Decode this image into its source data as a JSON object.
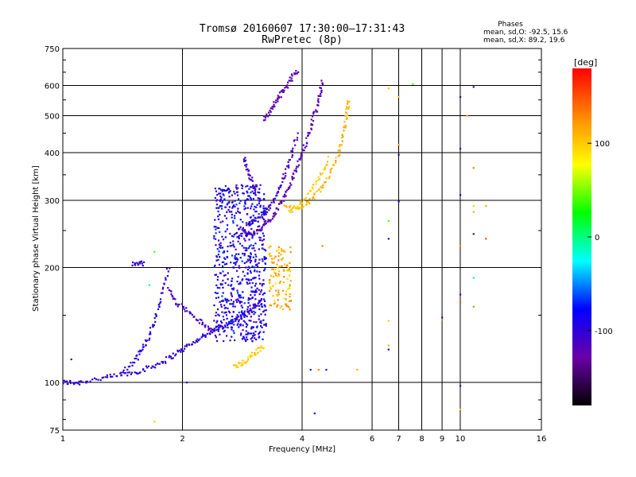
{
  "chart_data": {
    "type": "scatter",
    "title": "Tromsø 20160607 17:30:00–17:31:43",
    "subtitle": "RwPretec (8p)",
    "xlabel": "Frequency [MHz]",
    "ylabel": "Stationary phase Virtual Height [km]",
    "x_scale": "log",
    "y_scale": "log",
    "xlim": [
      1,
      16
    ],
    "ylim": [
      75,
      750
    ],
    "x_ticks": [
      1,
      2,
      4,
      6,
      8,
      10,
      16
    ],
    "x_tick_labels": [
      "1",
      "2",
      "4",
      "6",
      "8",
      "10",
      "16"
    ],
    "x_minor_ticks": [
      7,
      9
    ],
    "y_ticks": [
      75,
      100,
      200,
      300,
      400,
      500,
      600,
      750
    ],
    "y_tick_labels": [
      "75",
      "100",
      "200",
      "300",
      "400",
      "500",
      "600",
      "750"
    ],
    "grid": true,
    "phase_stats": {
      "heading": "Phases",
      "line_o": "mean, sd,O: -92.5, 15.6",
      "line_x": "mean, sd,X:  89.2, 19.6"
    },
    "colorbar": {
      "label": "[deg]",
      "range": [
        -180,
        180
      ],
      "ticks": [
        100,
        0,
        -100
      ],
      "tick_labels": [
        "100",
        "0",
        "-100"
      ],
      "colors": [
        "#000000",
        "#6a00a8",
        "#0000ff",
        "#00ffff",
        "#00ff00",
        "#ffff00",
        "#ff8800",
        "#ff0000"
      ]
    },
    "series": [
      {
        "traces": [
          {
            "phase": -100,
            "points": [
              [
                1.0,
                100
              ],
              [
                1.05,
                100
              ],
              [
                1.1,
                100
              ],
              [
                1.2,
                102
              ],
              [
                1.3,
                103
              ],
              [
                1.4,
                105
              ],
              [
                1.5,
                106
              ],
              [
                1.6,
                108
              ],
              [
                1.7,
                111
              ],
              [
                1.8,
                114
              ],
              [
                1.9,
                118
              ],
              [
                2.0,
                122
              ],
              [
                2.1,
                126
              ],
              [
                2.2,
                130
              ],
              [
                2.3,
                134
              ],
              [
                2.4,
                137
              ],
              [
                2.5,
                140
              ],
              [
                2.6,
                143
              ],
              [
                2.7,
                145
              ],
              [
                2.8,
                148
              ],
              [
                2.9,
                152
              ],
              [
                3.0,
                156
              ],
              [
                3.1,
                160
              ],
              [
                3.2,
                165
              ]
            ]
          },
          {
            "phase": -100,
            "points": [
              [
                1.4,
                106
              ],
              [
                1.5,
                112
              ],
              [
                1.55,
                118
              ],
              [
                1.6,
                125
              ],
              [
                1.65,
                133
              ],
              [
                1.7,
                145
              ],
              [
                1.75,
                160
              ],
              [
                1.8,
                180
              ],
              [
                1.85,
                205
              ]
            ]
          },
          {
            "phase": -110,
            "points": [
              [
                1.85,
                175
              ],
              [
                1.9,
                165
              ],
              [
                2.0,
                158
              ],
              [
                2.1,
                152
              ],
              [
                2.2,
                145
              ],
              [
                2.3,
                140
              ],
              [
                2.4,
                136
              ]
            ]
          },
          {
            "phase": -120,
            "points": [
              [
                2.8,
                250
              ],
              [
                2.9,
                245
              ],
              [
                3.0,
                245
              ],
              [
                3.1,
                250
              ],
              [
                3.2,
                258
              ],
              [
                3.3,
                265
              ],
              [
                3.4,
                275
              ],
              [
                3.5,
                290
              ],
              [
                3.6,
                305
              ],
              [
                3.7,
                322
              ],
              [
                3.8,
                345
              ],
              [
                3.9,
                372
              ],
              [
                4.0,
                400
              ],
              [
                4.1,
                430
              ],
              [
                4.2,
                465
              ],
              [
                4.3,
                505
              ],
              [
                4.4,
                545
              ],
              [
                4.45,
                580
              ],
              [
                4.5,
                620
              ]
            ]
          },
          {
            "phase": -110,
            "points": [
              [
                2.9,
                260
              ],
              [
                3.0,
                262
              ],
              [
                3.1,
                268
              ],
              [
                3.2,
                275
              ],
              [
                3.3,
                285
              ],
              [
                3.4,
                300
              ],
              [
                3.5,
                320
              ],
              [
                3.6,
                345
              ],
              [
                3.7,
                375
              ],
              [
                3.8,
                410
              ],
              [
                3.9,
                450
              ]
            ]
          },
          {
            "phase": -120,
            "points": [
              [
                3.2,
                490
              ],
              [
                3.3,
                510
              ],
              [
                3.4,
                535
              ],
              [
                3.5,
                560
              ],
              [
                3.6,
                585
              ],
              [
                3.7,
                610
              ],
              [
                3.8,
                640
              ],
              [
                3.9,
                660
              ]
            ]
          },
          {
            "phase": -110,
            "points": [
              [
                2.85,
                390
              ],
              [
                2.9,
                370
              ],
              [
                2.95,
                350
              ],
              [
                3.0,
                330
              ],
              [
                3.05,
                310
              ]
            ]
          },
          {
            "phase": -105,
            "points": [
              [
                1.5,
                205
              ],
              [
                1.55,
                205
              ],
              [
                1.6,
                205
              ]
            ]
          }
        ],
        "cloud": {
          "x_range": [
            2.4,
            3.25
          ],
          "y_range": [
            128,
            330
          ],
          "phase": -90,
          "count": 700
        }
      },
      {
        "traces": [
          {
            "phase": 110,
            "points": [
              [
                3.6,
                290
              ],
              [
                3.8,
                285
              ],
              [
                4.0,
                290
              ],
              [
                4.2,
                300
              ],
              [
                4.4,
                318
              ],
              [
                4.6,
                340
              ],
              [
                4.8,
                370
              ],
              [
                4.95,
                400
              ],
              [
                5.05,
                440
              ],
              [
                5.15,
                480
              ],
              [
                5.2,
                520
              ],
              [
                5.25,
                550
              ]
            ]
          },
          {
            "phase": 100,
            "points": [
              [
                3.7,
                280
              ],
              [
                3.9,
                290
              ],
              [
                4.1,
                305
              ],
              [
                4.3,
                330
              ],
              [
                4.5,
                355
              ],
              [
                4.7,
                390
              ]
            ]
          },
          {
            "phase": 100,
            "points": [
              [
                2.7,
                110
              ],
              [
                2.8,
                112
              ],
              [
                2.9,
                114
              ],
              [
                3.0,
                118
              ],
              [
                3.1,
                121
              ],
              [
                3.2,
                125
              ]
            ]
          }
        ],
        "cloud": {
          "x_range": [
            3.3,
            3.75
          ],
          "y_range": [
            155,
            230
          ],
          "phase": 110,
          "count": 110
        }
      },
      {
        "scattered": [
          {
            "x": 6.6,
            "y": 590,
            "phase": 100
          },
          {
            "x": 6.6,
            "y": 265,
            "phase": 40
          },
          {
            "x": 6.6,
            "y": 238,
            "phase": -100
          },
          {
            "x": 6.6,
            "y": 145,
            "phase": 100
          },
          {
            "x": 6.6,
            "y": 125,
            "phase": 110
          },
          {
            "x": 6.6,
            "y": 122,
            "phase": -100
          },
          {
            "x": 7.0,
            "y": 420,
            "phase": 110
          },
          {
            "x": 7.0,
            "y": 395,
            "phase": -100
          },
          {
            "x": 7.0,
            "y": 298,
            "phase": -100
          },
          {
            "x": 7.0,
            "y": 560,
            "phase": 100
          },
          {
            "x": 7.6,
            "y": 605,
            "phase": 40
          },
          {
            "x": 9.0,
            "y": 148,
            "phase": -100
          },
          {
            "x": 9.0,
            "y": 146,
            "phase": 130
          },
          {
            "x": 10.0,
            "y": 560,
            "phase": -100
          },
          {
            "x": 10.0,
            "y": 410,
            "phase": -100
          },
          {
            "x": 10.0,
            "y": 310,
            "phase": -100
          },
          {
            "x": 10.0,
            "y": 228,
            "phase": 130
          },
          {
            "x": 10.0,
            "y": 170,
            "phase": -110
          },
          {
            "x": 10.0,
            "y": 162,
            "phase": 150
          },
          {
            "x": 10.0,
            "y": 98,
            "phase": -100
          },
          {
            "x": 10.0,
            "y": 85,
            "phase": 100
          },
          {
            "x": 10.4,
            "y": 500,
            "phase": 110
          },
          {
            "x": 10.8,
            "y": 595,
            "phase": -100
          },
          {
            "x": 10.8,
            "y": 365,
            "phase": 130
          },
          {
            "x": 10.8,
            "y": 290,
            "phase": 60
          },
          {
            "x": 10.8,
            "y": 280,
            "phase": 110
          },
          {
            "x": 10.8,
            "y": 245,
            "phase": -100
          },
          {
            "x": 10.8,
            "y": 188,
            "phase": -10
          },
          {
            "x": 10.8,
            "y": 158,
            "phase": 130
          },
          {
            "x": 11.6,
            "y": 290,
            "phase": 110
          },
          {
            "x": 11.6,
            "y": 238,
            "phase": 150
          },
          {
            "x": 4.2,
            "y": 108,
            "phase": -100
          },
          {
            "x": 4.4,
            "y": 108,
            "phase": 130
          },
          {
            "x": 4.6,
            "y": 108,
            "phase": -100
          },
          {
            "x": 5.5,
            "y": 108,
            "phase": 110
          },
          {
            "x": 4.3,
            "y": 83,
            "phase": -100
          },
          {
            "x": 4.5,
            "y": 228,
            "phase": 130
          },
          {
            "x": 1.7,
            "y": 79,
            "phase": 100
          },
          {
            "x": 1.7,
            "y": 220,
            "phase": 40
          },
          {
            "x": 1.65,
            "y": 180,
            "phase": -10
          },
          {
            "x": 2.05,
            "y": 100,
            "phase": -100
          },
          {
            "x": 1.05,
            "y": 115,
            "phase": -100
          }
        ]
      }
    ]
  }
}
